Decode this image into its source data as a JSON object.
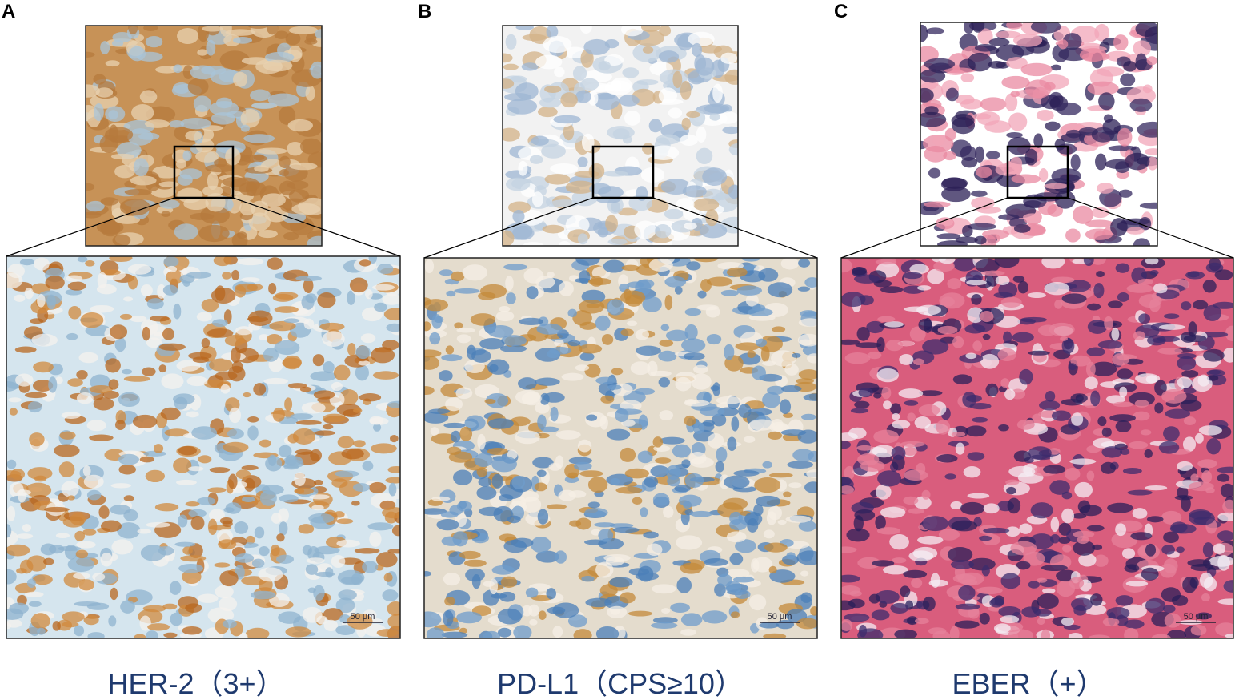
{
  "panels": [
    {
      "letter": "A",
      "caption": "HER-2（3+）",
      "scale_bar": "50 μm"
    },
    {
      "letter": "B",
      "caption": "PD-L1（CPS≥10）",
      "scale_bar": "50 μm"
    },
    {
      "letter": "C",
      "caption": "EBER（+）",
      "scale_bar": "50 μm"
    }
  ]
}
